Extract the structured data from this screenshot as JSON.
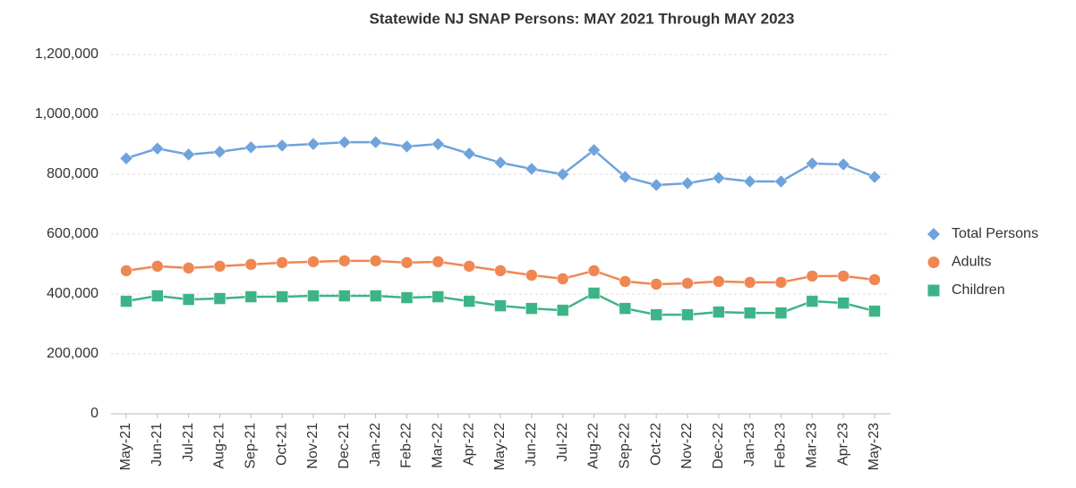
{
  "chart_data": {
    "type": "line",
    "title": "Statewide NJ SNAP Persons:  MAY 2021 Through MAY 2023",
    "categories": [
      "May-21",
      "Jun-21",
      "Jul-21",
      "Aug-21",
      "Sep-21",
      "Oct-21",
      "Nov-21",
      "Dec-21",
      "Jan-22",
      "Feb-22",
      "Mar-22",
      "Apr-22",
      "May-22",
      "Jun-22",
      "Jul-22",
      "Aug-22",
      "Sep-22",
      "Oct-22",
      "Nov-22",
      "Dec-22",
      "Jan-23",
      "Feb-23",
      "Mar-23",
      "Apr-23",
      "May-23"
    ],
    "series": [
      {
        "name": "Total Persons",
        "color": "#6fa3dc",
        "marker": "diamond",
        "values": [
          853000,
          886000,
          866000,
          875000,
          890000,
          896000,
          901000,
          907000,
          907000,
          893000,
          901000,
          869000,
          839000,
          818000,
          800000,
          881000,
          791000,
          764000,
          770000,
          788000,
          776000,
          776000,
          836000,
          833000,
          791000
        ]
      },
      {
        "name": "Adults",
        "color": "#ef8753",
        "marker": "circle",
        "values": [
          478000,
          493000,
          487000,
          493000,
          499000,
          505000,
          508000,
          511000,
          511000,
          505000,
          508000,
          493000,
          478000,
          463000,
          451000,
          478000,
          442000,
          433000,
          436000,
          442000,
          439000,
          439000,
          460000,
          460000,
          448000
        ]
      },
      {
        "name": "Children",
        "color": "#3db487",
        "marker": "square",
        "values": [
          376000,
          394000,
          382000,
          385000,
          391000,
          391000,
          394000,
          394000,
          394000,
          388000,
          391000,
          376000,
          361000,
          352000,
          346000,
          403000,
          352000,
          331000,
          331000,
          340000,
          337000,
          337000,
          376000,
          370000,
          343000
        ]
      }
    ],
    "ylim": [
      0,
      1200000
    ],
    "yticks": [
      0,
      {
        "value": 200000,
        "label": "200,000"
      },
      {
        "value": 400000,
        "label": "400,000"
      },
      {
        "value": 600000,
        "label": "600,000"
      },
      {
        "value": 800000,
        "label": "800,000"
      },
      {
        "value": 1000000,
        "label": "1,000,000"
      },
      {
        "value": 1200000,
        "label": "1,200,000"
      }
    ],
    "grid": true,
    "legend": "right"
  }
}
